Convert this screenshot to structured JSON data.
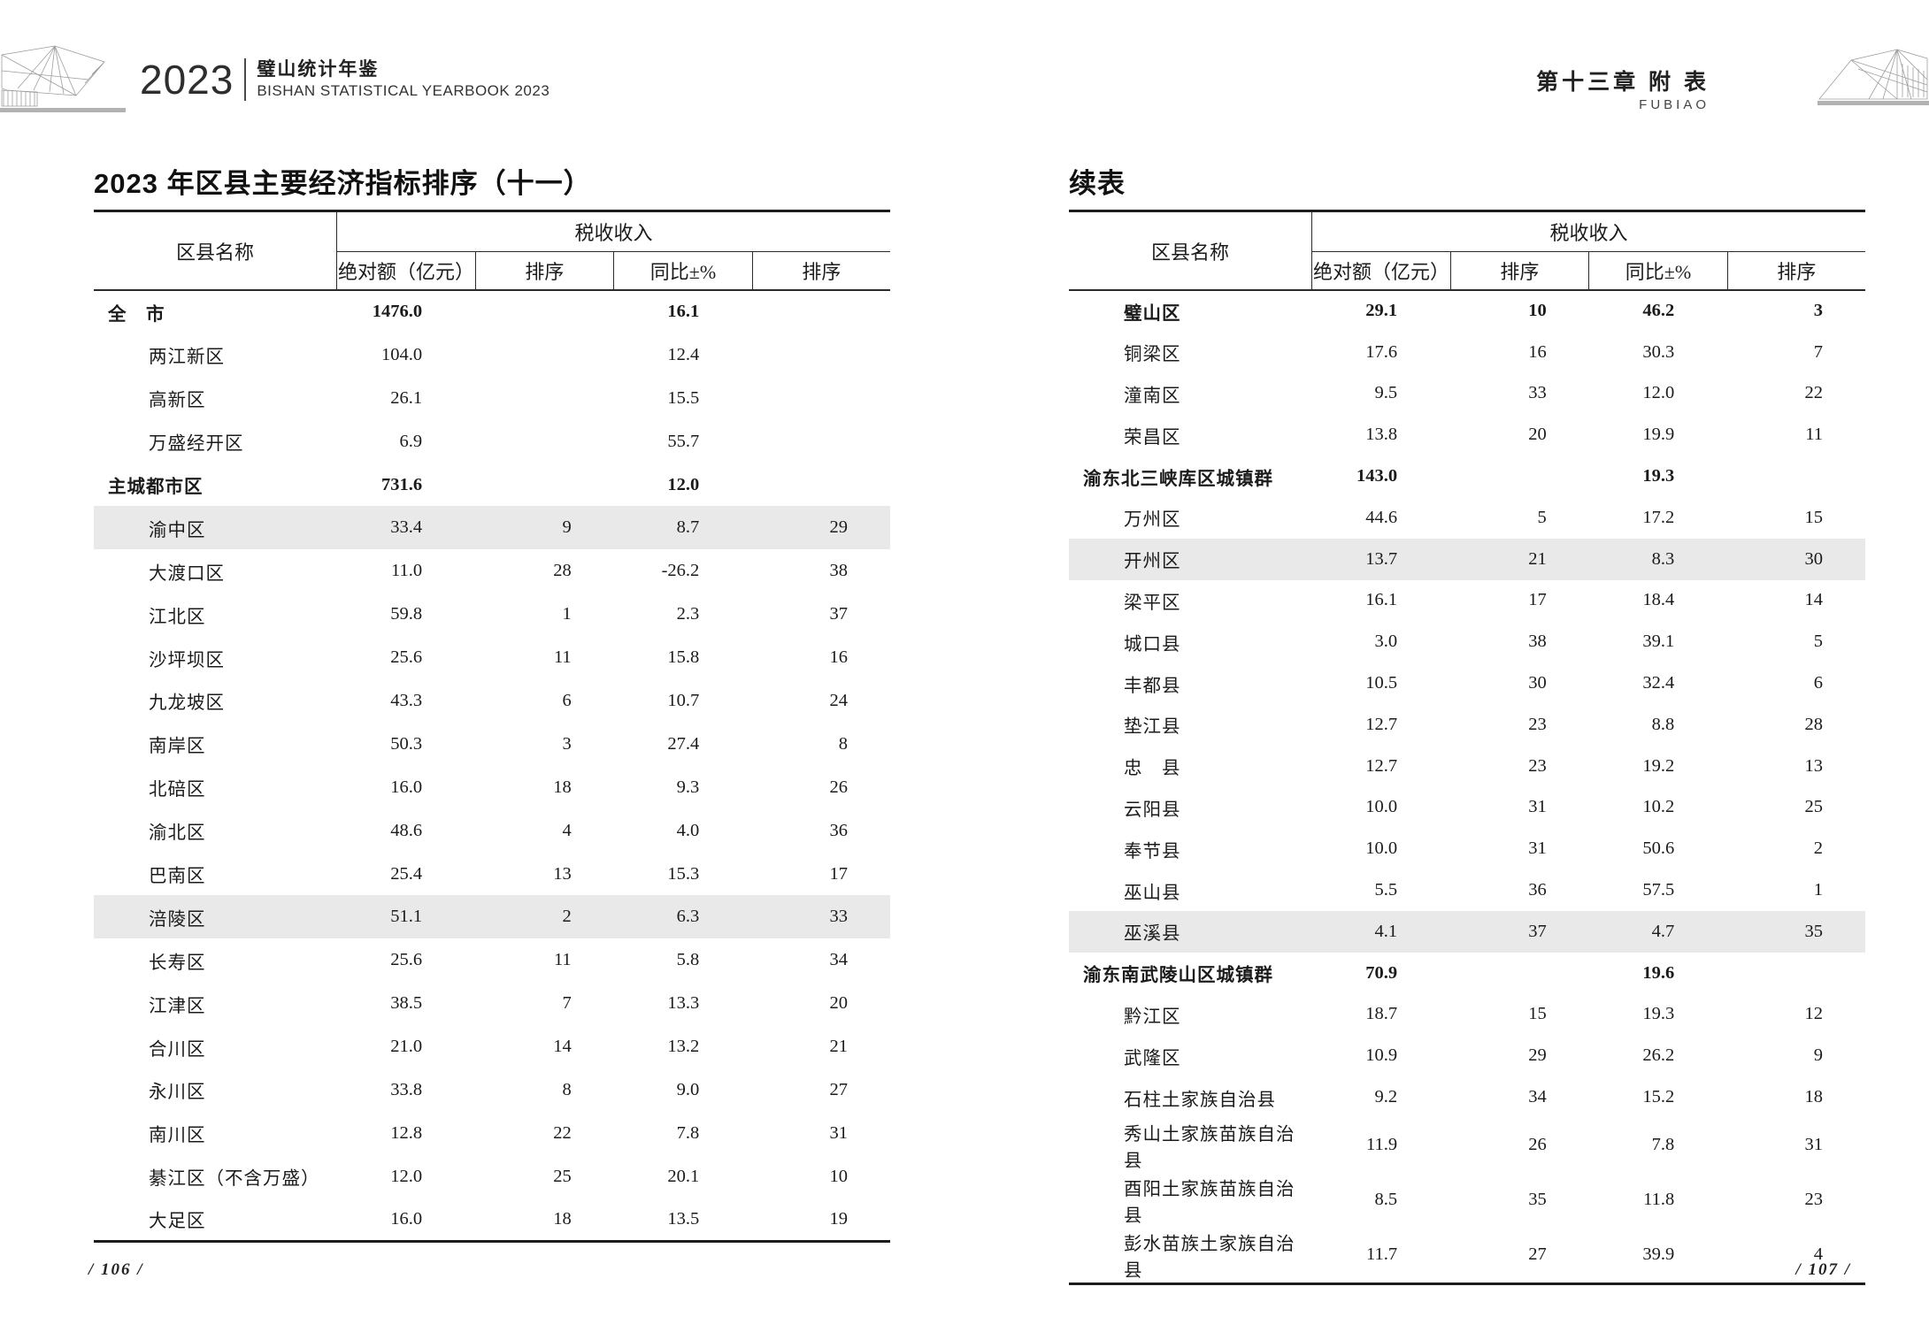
{
  "running_head": {
    "year": "2023",
    "book_title_cn": "璧山统计年鉴",
    "book_title_en": "BISHAN STATISTICAL YEARBOOK 2023",
    "chapter_cn": "第十三章 附 表",
    "chapter_en": "FUBIAO"
  },
  "left_page": {
    "title": "2023 年区县主要经济指标排序（十一）",
    "footer": "/ 106 /",
    "table": {
      "name_header": "区县名称",
      "group_header": "税收收入",
      "columns": [
        "绝对额（亿元）",
        "排序",
        "同比±%",
        "排序"
      ],
      "rows": [
        {
          "name": "全　市",
          "abs": "1476.0",
          "rank1": "",
          "yoy": "16.1",
          "rank2": "",
          "bold": true,
          "indent": false,
          "hl": false
        },
        {
          "name": "两江新区",
          "abs": "104.0",
          "rank1": "",
          "yoy": "12.4",
          "rank2": "",
          "bold": false,
          "indent": true,
          "hl": false
        },
        {
          "name": "高新区",
          "abs": "26.1",
          "rank1": "",
          "yoy": "15.5",
          "rank2": "",
          "bold": false,
          "indent": true,
          "hl": false
        },
        {
          "name": "万盛经开区",
          "abs": "6.9",
          "rank1": "",
          "yoy": "55.7",
          "rank2": "",
          "bold": false,
          "indent": true,
          "hl": false
        },
        {
          "name": "主城都市区",
          "abs": "731.6",
          "rank1": "",
          "yoy": "12.0",
          "rank2": "",
          "bold": true,
          "indent": false,
          "hl": false
        },
        {
          "name": "渝中区",
          "abs": "33.4",
          "rank1": "9",
          "yoy": "8.7",
          "rank2": "29",
          "bold": false,
          "indent": true,
          "hl": true
        },
        {
          "name": "大渡口区",
          "abs": "11.0",
          "rank1": "28",
          "yoy": "-26.2",
          "rank2": "38",
          "bold": false,
          "indent": true,
          "hl": false
        },
        {
          "name": "江北区",
          "abs": "59.8",
          "rank1": "1",
          "yoy": "2.3",
          "rank2": "37",
          "bold": false,
          "indent": true,
          "hl": false
        },
        {
          "name": "沙坪坝区",
          "abs": "25.6",
          "rank1": "11",
          "yoy": "15.8",
          "rank2": "16",
          "bold": false,
          "indent": true,
          "hl": false
        },
        {
          "name": "九龙坡区",
          "abs": "43.3",
          "rank1": "6",
          "yoy": "10.7",
          "rank2": "24",
          "bold": false,
          "indent": true,
          "hl": false
        },
        {
          "name": "南岸区",
          "abs": "50.3",
          "rank1": "3",
          "yoy": "27.4",
          "rank2": "8",
          "bold": false,
          "indent": true,
          "hl": false
        },
        {
          "name": "北碚区",
          "abs": "16.0",
          "rank1": "18",
          "yoy": "9.3",
          "rank2": "26",
          "bold": false,
          "indent": true,
          "hl": false
        },
        {
          "name": "渝北区",
          "abs": "48.6",
          "rank1": "4",
          "yoy": "4.0",
          "rank2": "36",
          "bold": false,
          "indent": true,
          "hl": false
        },
        {
          "name": "巴南区",
          "abs": "25.4",
          "rank1": "13",
          "yoy": "15.3",
          "rank2": "17",
          "bold": false,
          "indent": true,
          "hl": false
        },
        {
          "name": "涪陵区",
          "abs": "51.1",
          "rank1": "2",
          "yoy": "6.3",
          "rank2": "33",
          "bold": false,
          "indent": true,
          "hl": true
        },
        {
          "name": "长寿区",
          "abs": "25.6",
          "rank1": "11",
          "yoy": "5.8",
          "rank2": "34",
          "bold": false,
          "indent": true,
          "hl": false
        },
        {
          "name": "江津区",
          "abs": "38.5",
          "rank1": "7",
          "yoy": "13.3",
          "rank2": "20",
          "bold": false,
          "indent": true,
          "hl": false
        },
        {
          "name": "合川区",
          "abs": "21.0",
          "rank1": "14",
          "yoy": "13.2",
          "rank2": "21",
          "bold": false,
          "indent": true,
          "hl": false
        },
        {
          "name": "永川区",
          "abs": "33.8",
          "rank1": "8",
          "yoy": "9.0",
          "rank2": "27",
          "bold": false,
          "indent": true,
          "hl": false
        },
        {
          "name": "南川区",
          "abs": "12.8",
          "rank1": "22",
          "yoy": "7.8",
          "rank2": "31",
          "bold": false,
          "indent": true,
          "hl": false
        },
        {
          "name": "綦江区（不含万盛）",
          "abs": "12.0",
          "rank1": "25",
          "yoy": "20.1",
          "rank2": "10",
          "bold": false,
          "indent": true,
          "hl": false
        },
        {
          "name": "大足区",
          "abs": "16.0",
          "rank1": "18",
          "yoy": "13.5",
          "rank2": "19",
          "bold": false,
          "indent": true,
          "hl": false
        }
      ]
    }
  },
  "right_page": {
    "title": "续表",
    "footer": "/ 107 /",
    "table": {
      "name_header": "区县名称",
      "group_header": "税收收入",
      "columns": [
        "绝对额（亿元）",
        "排序",
        "同比±%",
        "排序"
      ],
      "rows": [
        {
          "name": "璧山区",
          "abs": "29.1",
          "rank1": "10",
          "yoy": "46.2",
          "rank2": "3",
          "bold": true,
          "indent": true,
          "hl": false
        },
        {
          "name": "铜梁区",
          "abs": "17.6",
          "rank1": "16",
          "yoy": "30.3",
          "rank2": "7",
          "bold": false,
          "indent": true,
          "hl": false
        },
        {
          "name": "潼南区",
          "abs": "9.5",
          "rank1": "33",
          "yoy": "12.0",
          "rank2": "22",
          "bold": false,
          "indent": true,
          "hl": false
        },
        {
          "name": "荣昌区",
          "abs": "13.8",
          "rank1": "20",
          "yoy": "19.9",
          "rank2": "11",
          "bold": false,
          "indent": true,
          "hl": false
        },
        {
          "name": "渝东北三峡库区城镇群",
          "abs": "143.0",
          "rank1": "",
          "yoy": "19.3",
          "rank2": "",
          "bold": true,
          "indent": false,
          "hl": false
        },
        {
          "name": "万州区",
          "abs": "44.6",
          "rank1": "5",
          "yoy": "17.2",
          "rank2": "15",
          "bold": false,
          "indent": true,
          "hl": false
        },
        {
          "name": "开州区",
          "abs": "13.7",
          "rank1": "21",
          "yoy": "8.3",
          "rank2": "30",
          "bold": false,
          "indent": true,
          "hl": true
        },
        {
          "name": "梁平区",
          "abs": "16.1",
          "rank1": "17",
          "yoy": "18.4",
          "rank2": "14",
          "bold": false,
          "indent": true,
          "hl": false
        },
        {
          "name": "城口县",
          "abs": "3.0",
          "rank1": "38",
          "yoy": "39.1",
          "rank2": "5",
          "bold": false,
          "indent": true,
          "hl": false
        },
        {
          "name": "丰都县",
          "abs": "10.5",
          "rank1": "30",
          "yoy": "32.4",
          "rank2": "6",
          "bold": false,
          "indent": true,
          "hl": false
        },
        {
          "name": "垫江县",
          "abs": "12.7",
          "rank1": "23",
          "yoy": "8.8",
          "rank2": "28",
          "bold": false,
          "indent": true,
          "hl": false
        },
        {
          "name": "忠　县",
          "abs": "12.7",
          "rank1": "23",
          "yoy": "19.2",
          "rank2": "13",
          "bold": false,
          "indent": true,
          "hl": false
        },
        {
          "name": "云阳县",
          "abs": "10.0",
          "rank1": "31",
          "yoy": "10.2",
          "rank2": "25",
          "bold": false,
          "indent": true,
          "hl": false
        },
        {
          "name": "奉节县",
          "abs": "10.0",
          "rank1": "31",
          "yoy": "50.6",
          "rank2": "2",
          "bold": false,
          "indent": true,
          "hl": false
        },
        {
          "name": "巫山县",
          "abs": "5.5",
          "rank1": "36",
          "yoy": "57.5",
          "rank2": "1",
          "bold": false,
          "indent": true,
          "hl": false
        },
        {
          "name": "巫溪县",
          "abs": "4.1",
          "rank1": "37",
          "yoy": "4.7",
          "rank2": "35",
          "bold": false,
          "indent": true,
          "hl": true
        },
        {
          "name": "渝东南武陵山区城镇群",
          "abs": "70.9",
          "rank1": "",
          "yoy": "19.6",
          "rank2": "",
          "bold": true,
          "indent": false,
          "hl": false
        },
        {
          "name": "黔江区",
          "abs": "18.7",
          "rank1": "15",
          "yoy": "19.3",
          "rank2": "12",
          "bold": false,
          "indent": true,
          "hl": false
        },
        {
          "name": "武隆区",
          "abs": "10.9",
          "rank1": "29",
          "yoy": "26.2",
          "rank2": "9",
          "bold": false,
          "indent": true,
          "hl": false
        },
        {
          "name": "石柱土家族自治县",
          "abs": "9.2",
          "rank1": "34",
          "yoy": "15.2",
          "rank2": "18",
          "bold": false,
          "indent": true,
          "hl": false
        },
        {
          "name": "秀山土家族苗族自治县",
          "abs": "11.9",
          "rank1": "26",
          "yoy": "7.8",
          "rank2": "31",
          "bold": false,
          "indent": true,
          "hl": false
        },
        {
          "name": "酉阳土家族苗族自治县",
          "abs": "8.5",
          "rank1": "35",
          "yoy": "11.8",
          "rank2": "23",
          "bold": false,
          "indent": true,
          "hl": false
        },
        {
          "name": "彭水苗族土家族自治县",
          "abs": "11.7",
          "rank1": "27",
          "yoy": "39.9",
          "rank2": "4",
          "bold": false,
          "indent": true,
          "hl": false
        }
      ]
    }
  }
}
